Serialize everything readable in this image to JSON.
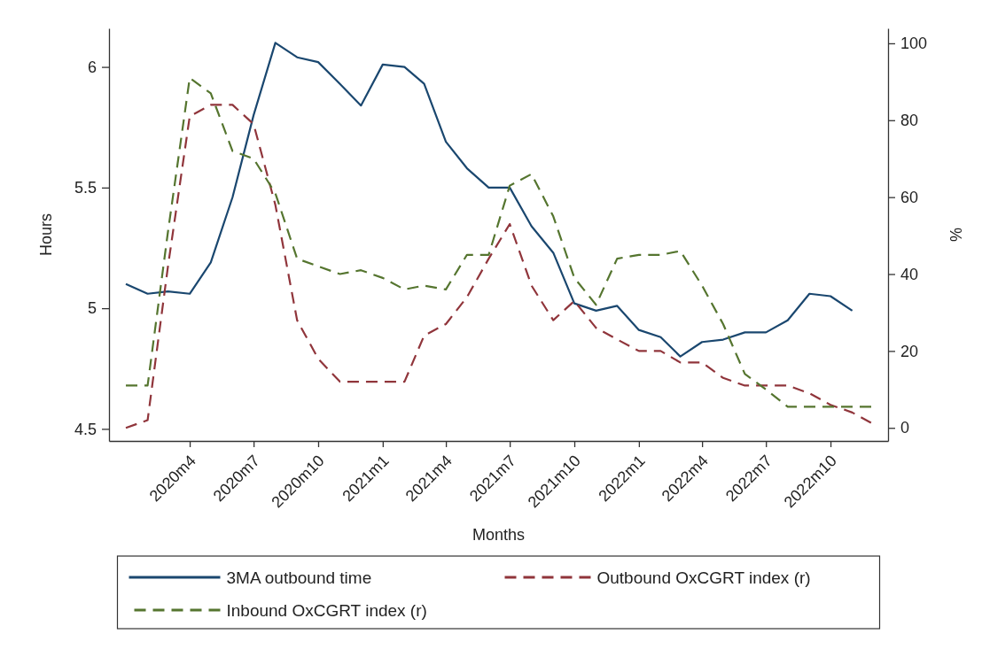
{
  "chart_data": {
    "type": "line",
    "xlabel": "Months",
    "ylabel": "Hours",
    "y2label": "%",
    "x": [
      "2020-01",
      "2020-02",
      "2020-03",
      "2020-04",
      "2020-05",
      "2020-06",
      "2020-07",
      "2020-08",
      "2020-09",
      "2020-10",
      "2020-11",
      "2020-12",
      "2021-01",
      "2021-02",
      "2021-03",
      "2021-04",
      "2021-05",
      "2021-06",
      "2021-07",
      "2021-08",
      "2021-09",
      "2021-10",
      "2021-11",
      "2021-12",
      "2022-01",
      "2022-02",
      "2022-03",
      "2022-04",
      "2022-05",
      "2022-06",
      "2022-07",
      "2022-08",
      "2022-09",
      "2022-10",
      "2022-11",
      "2022-12"
    ],
    "xlim": [
      "2019-12-08",
      "2022-12-22"
    ],
    "xticks": [
      {
        "value": "2020-04",
        "label": "2020m4"
      },
      {
        "value": "2020-07",
        "label": "2020m7"
      },
      {
        "value": "2020-10",
        "label": "2020m10"
      },
      {
        "value": "2021-01",
        "label": "2021m1"
      },
      {
        "value": "2021-04",
        "label": "2021m4"
      },
      {
        "value": "2021-07",
        "label": "2021m7"
      },
      {
        "value": "2021-10",
        "label": "2021m10"
      },
      {
        "value": "2022-01",
        "label": "2022m1"
      },
      {
        "value": "2022-04",
        "label": "2022m4"
      },
      {
        "value": "2022-07",
        "label": "2022m7"
      },
      {
        "value": "2022-10",
        "label": "2022m10"
      }
    ],
    "ylim": [
      4.45,
      6.16
    ],
    "yticks": [
      4.5,
      5,
      5.5,
      6
    ],
    "y2lim": [
      -3.4,
      103.9
    ],
    "y2ticks": [
      0,
      20,
      40,
      60,
      80,
      100
    ],
    "legend": "bottom",
    "series": [
      {
        "name": "3MA outbound time",
        "color": "#1a476f",
        "line_style": "solid",
        "values": [
          5.1,
          5.06,
          5.07,
          5.06,
          5.19,
          5.46,
          5.8,
          6.1,
          6.04,
          6.02,
          5.93,
          5.84,
          6.01,
          6.0,
          5.93,
          5.69,
          5.58,
          5.5,
          5.5,
          5.34,
          5.23,
          5.02,
          4.99,
          5.01,
          4.91,
          4.88,
          4.8,
          4.86,
          4.87,
          4.9,
          4.9,
          4.95,
          5.06,
          5.05,
          4.99,
          null
        ]
      },
      {
        "name": "Outbound OxCGRT index (r)",
        "color": "#90353b",
        "line_style": "dashed",
        "axis": "y2",
        "values": [
          0,
          2,
          42,
          81,
          84,
          84,
          79,
          58,
          28,
          18,
          12,
          12,
          12,
          12,
          24,
          27,
          34,
          44,
          53,
          37,
          28,
          33,
          26,
          23,
          20,
          20,
          17,
          17,
          13,
          11,
          11,
          11,
          9,
          6,
          4,
          1
        ]
      },
      {
        "name": "Inbound OxCGRT index (r)",
        "color": "#55752f",
        "line_style": "dashed",
        "axis": "y2",
        "values": [
          11,
          11,
          51,
          91,
          87,
          72,
          70,
          61,
          44,
          42,
          40,
          41,
          39,
          36,
          37,
          36,
          45,
          45,
          63,
          66,
          55,
          39,
          32,
          44,
          45,
          45,
          46,
          37,
          27,
          14,
          10,
          5.5,
          5.5,
          5.5,
          5.5,
          5.5
        ]
      }
    ]
  }
}
